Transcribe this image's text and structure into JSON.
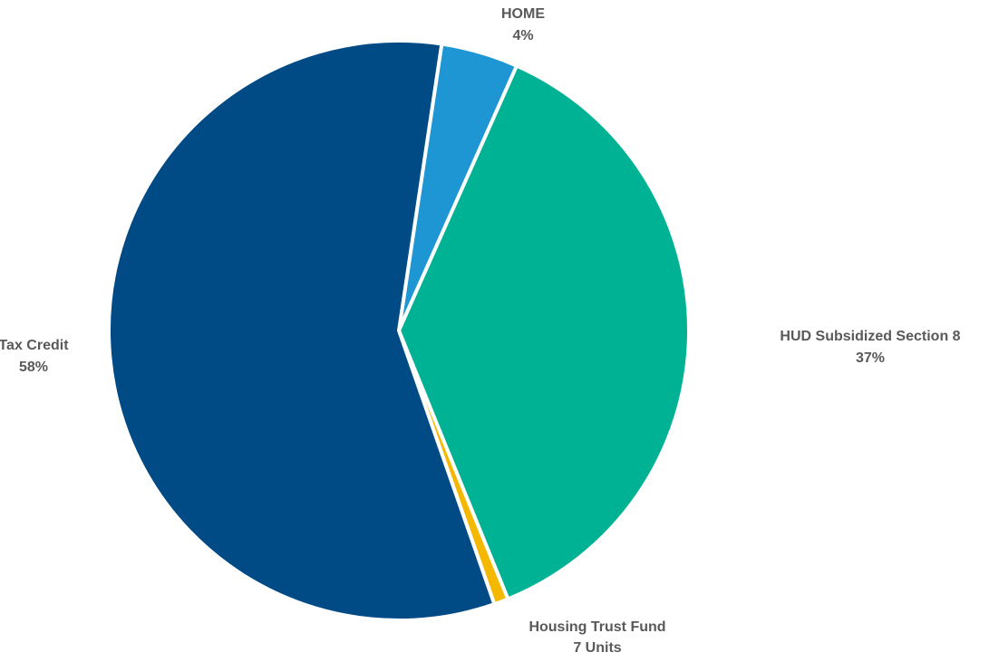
{
  "chart_data": {
    "type": "pie",
    "title": "",
    "slices": [
      {
        "label": "HOME",
        "value_label": "4%",
        "value": 4.3,
        "color": "#1e96d4"
      },
      {
        "label": "HUD Subsidized Section 8",
        "value_label": "37%",
        "value": 37.2,
        "color": "#00b294"
      },
      {
        "label": "Housing Trust Fund",
        "value_label": "7 Units",
        "value": 0.8,
        "color": "#f5b800"
      },
      {
        "label": "Tax Credit",
        "value_label": "58%",
        "value": 57.7,
        "color": "#004a86"
      }
    ],
    "start_angle_deg": 8.5,
    "direction": "clockwise",
    "separator_color": "#ffffff",
    "legend": "none",
    "label_position": "outside"
  }
}
